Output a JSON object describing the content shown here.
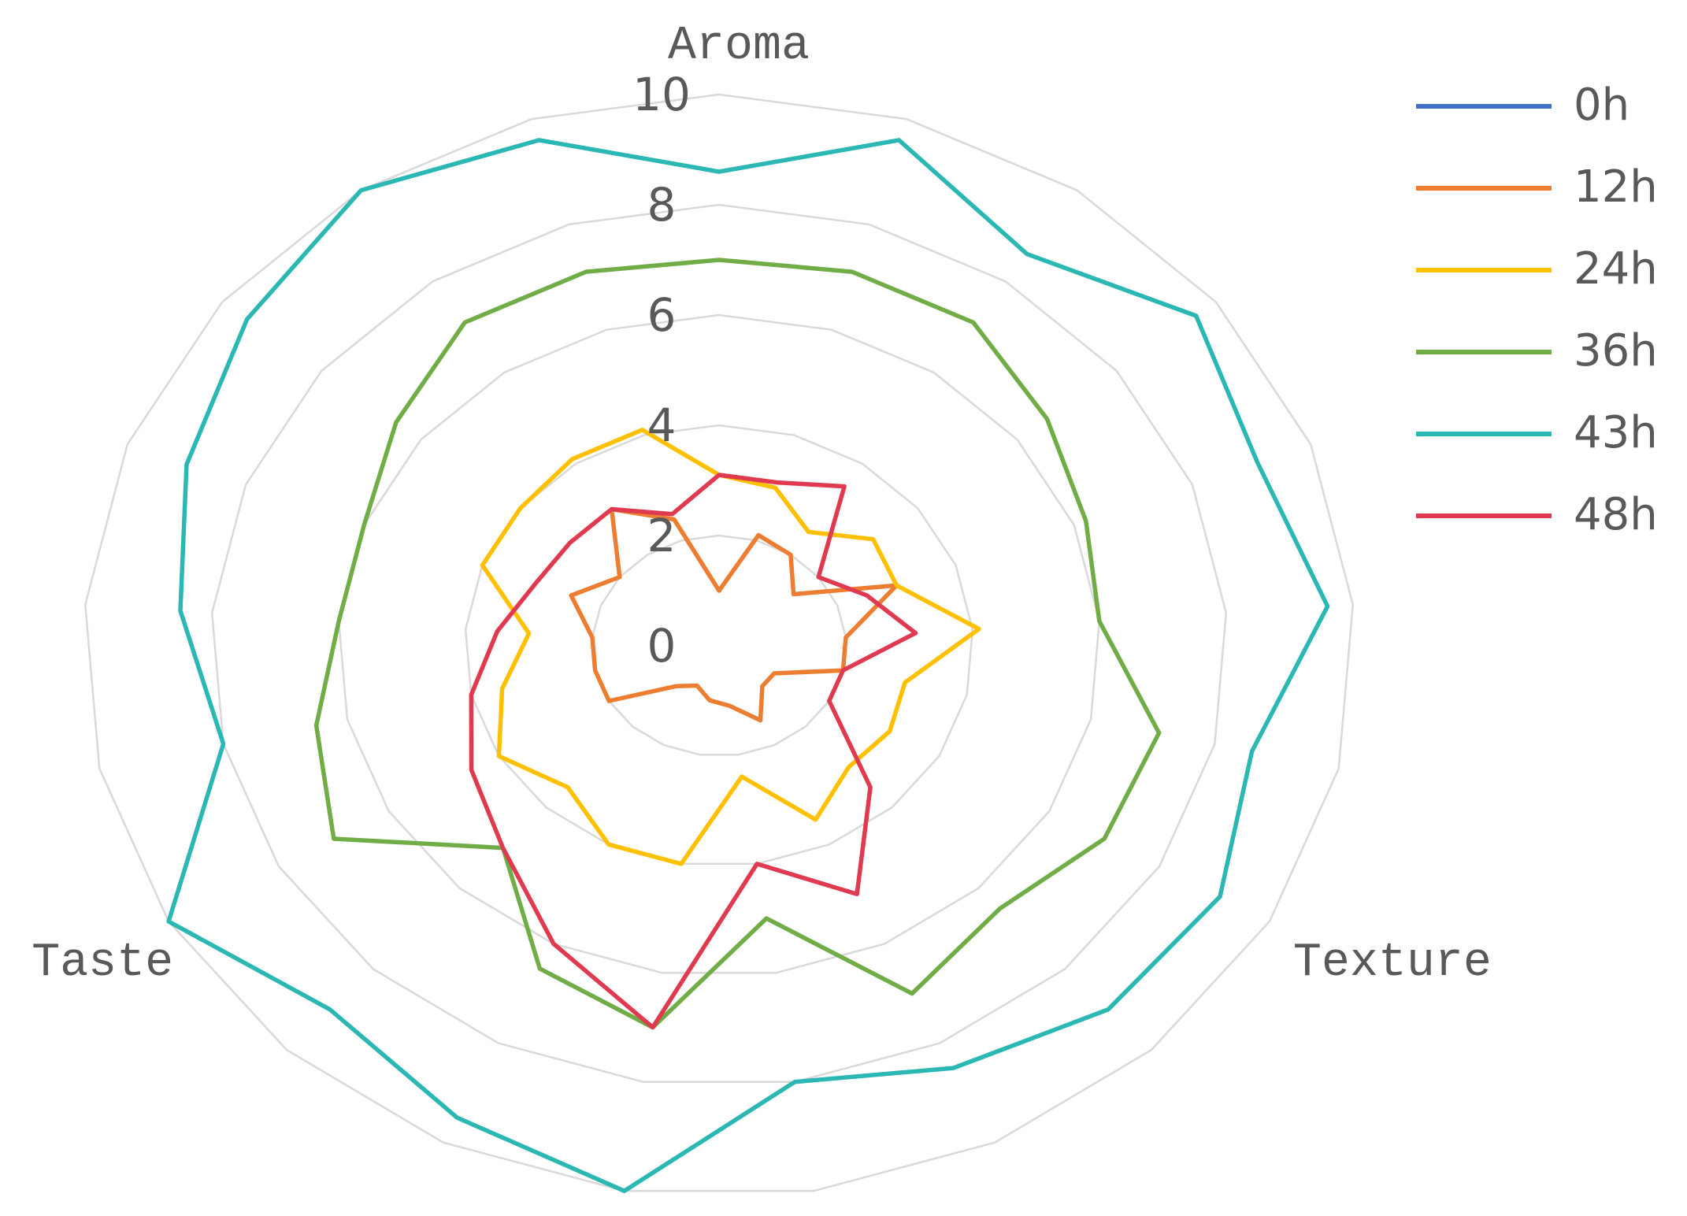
{
  "chart_data": {
    "type": "radar",
    "categories": [
      "Aroma",
      null,
      null,
      null,
      null,
      null,
      null,
      "Texture",
      null,
      null,
      null,
      null,
      null,
      null,
      "Taste",
      null,
      null,
      null,
      null,
      null,
      null
    ],
    "ylim": [
      0,
      10
    ],
    "yticks": [
      0,
      2,
      4,
      6,
      8,
      10
    ],
    "grid": true,
    "legend": "right",
    "series": [
      {
        "name": "0h",
        "color": "#4472c4",
        "values": [
          0,
          0,
          0,
          0,
          0,
          0,
          0,
          0,
          0,
          0,
          0,
          0,
          0,
          0,
          0,
          0,
          0,
          0,
          0,
          0,
          0
        ]
      },
      {
        "name": "12h",
        "color": "#ed7d31",
        "values": [
          1.0,
          2.1,
          2.0,
          1.5,
          3.0,
          2.0,
          2.0,
          1.0,
          1.0,
          1.5,
          1.1,
          1.0,
          0.8,
          1.0,
          2.0,
          2.0,
          2.0,
          2.5,
          2.0,
          3.0,
          2.4
        ]
      },
      {
        "name": "24h",
        "color": "#ffc000",
        "values": [
          3.1,
          3.0,
          2.5,
          3.1,
          3.0,
          4.1,
          3.0,
          3.1,
          3.0,
          3.5,
          2.4,
          4.0,
          4.0,
          3.5,
          4.0,
          3.5,
          3.0,
          4.0,
          4.0,
          4.1,
          4.1
        ]
      },
      {
        "name": "36h",
        "color": "#70ad47",
        "values": [
          7.0,
          7.1,
          7.1,
          6.6,
          6.2,
          6.0,
          7.1,
          7.0,
          6.5,
          7.0,
          5.0,
          7.0,
          6.5,
          5.0,
          7.0,
          6.5,
          6.0,
          6.0,
          6.5,
          7.1,
          7.1
        ]
      },
      {
        "name": "43h",
        "color": "#2bb7b3",
        "values": [
          8.6,
          9.6,
          8.6,
          9.6,
          9.1,
          9.6,
          8.6,
          9.1,
          9.0,
          8.5,
          8.0,
          10.0,
          9.5,
          9.0,
          10.0,
          8.0,
          8.5,
          9.0,
          9.5,
          10.0,
          9.6
        ]
      },
      {
        "name": "48h",
        "color": "#e03a50",
        "values": [
          3.1,
          3.1,
          3.5,
          2.0,
          2.5,
          3.1,
          2.0,
          2.0,
          3.5,
          5.0,
          4.0,
          7.0,
          6.0,
          5.0,
          4.5,
          4.0,
          3.5,
          3.1,
          3.0,
          3.0,
          2.5
        ]
      }
    ]
  }
}
